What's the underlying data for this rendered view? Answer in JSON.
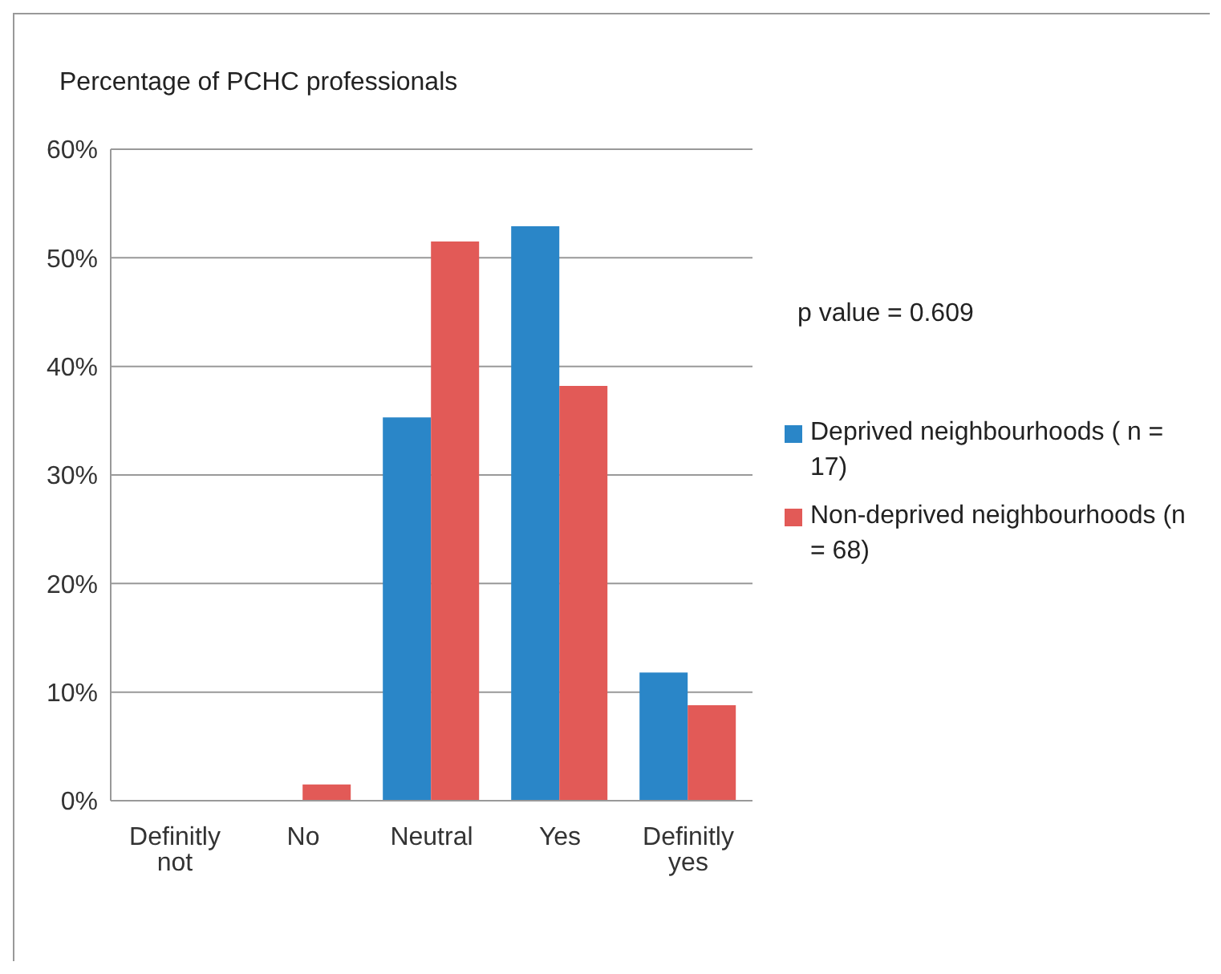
{
  "chart_data": {
    "type": "bar",
    "title": "Percentage of PCHC professionals",
    "categories": [
      "Definitly not",
      "No",
      "Neutral",
      "Yes",
      "Definitly yes"
    ],
    "series": [
      {
        "name": "Deprived neighbourhoods ( n = 17)",
        "color": "#2a86c8",
        "values": [
          0,
          0,
          35.3,
          52.9,
          11.8
        ]
      },
      {
        "name": "Non-deprived neighbourhoods (n = 68)",
        "color": "#e25a57",
        "values": [
          0,
          1.5,
          51.5,
          38.2,
          8.8
        ]
      }
    ],
    "ylim": [
      0,
      60
    ],
    "yticks": [
      {
        "value": 0,
        "label": "0%"
      },
      {
        "value": 10,
        "label": "10%"
      },
      {
        "value": 20,
        "label": "20%"
      },
      {
        "value": 30,
        "label": "30%"
      },
      {
        "value": 40,
        "label": "40%"
      },
      {
        "value": 50,
        "label": "50%"
      },
      {
        "value": 60,
        "label": "60%"
      }
    ],
    "grid": "y",
    "legend": "right",
    "annotations": [
      "p value = 0.609"
    ]
  }
}
